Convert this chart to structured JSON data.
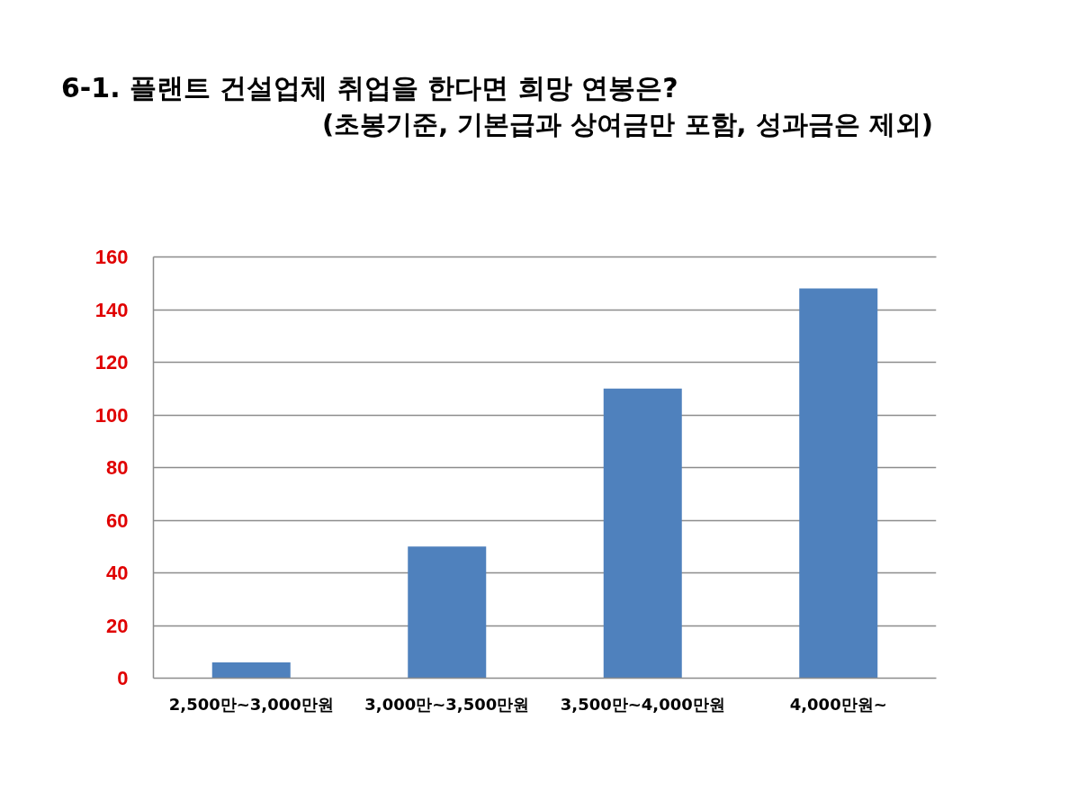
{
  "chart_data": {
    "type": "bar",
    "title": "6-1. 플랜트 건설업체 취업을 한다면 희망 연봉은?",
    "subtitle": "(초봉기준, 기본급과 상여금만 포함, 성과금은 제외)",
    "categories": [
      "2,500만~3,000만원",
      "3,000만~3,500만원",
      "3,500만~4,000만원",
      "4,000만원~"
    ],
    "values": [
      6,
      50,
      110,
      148
    ],
    "color": "#4f81bd",
    "ylim": [
      0,
      160
    ],
    "yticks": [
      0,
      20,
      40,
      60,
      80,
      100,
      120,
      140,
      160
    ],
    "grid": "y"
  }
}
